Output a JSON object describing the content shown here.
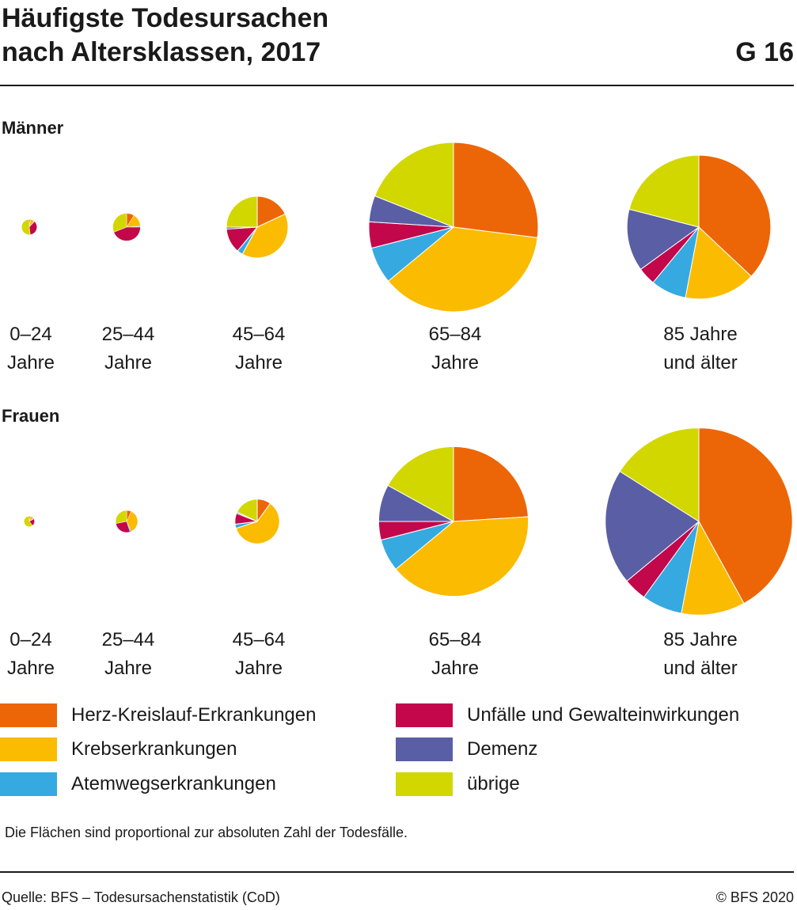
{
  "header": {
    "title_line1": "Häufigste Todesursachen",
    "title_line2": "nach Altersklassen, 2017",
    "graphic_number": "G 16"
  },
  "colors": {
    "herz": "#ec6608",
    "krebs": "#fbbb00",
    "atem": "#36a9e1",
    "unfall": "#c3074b",
    "demenz": "#5a5ea4",
    "uebrige": "#d2d700"
  },
  "legend": [
    {
      "key": "herz",
      "label": "Herz-Kreislauf-Erkrankungen"
    },
    {
      "key": "krebs",
      "label": "Krebserkrankungen"
    },
    {
      "key": "atem",
      "label": "Atemwegserkrankungen"
    },
    {
      "key": "unfall",
      "label": "Unfälle und Gewalteinwirkungen"
    },
    {
      "key": "demenz",
      "label": "Demenz"
    },
    {
      "key": "uebrige",
      "label": "übrige"
    }
  ],
  "note": "Die Flächen sind proportional zur absoluten Zahl der Todesfälle.",
  "footer": {
    "source": "Quelle: BFS – Todesursachenstatistik (CoD)",
    "copyright": "© BFS 2020"
  },
  "chart_data": {
    "type": "pie",
    "categories": [
      "herz",
      "krebs",
      "atem",
      "unfall",
      "demenz",
      "uebrige"
    ],
    "age_groups": [
      {
        "line1": "0–24",
        "line2": "Jahre"
      },
      {
        "line1": "25–44",
        "line2": "Jahre"
      },
      {
        "line1": "45–64",
        "line2": "Jahre"
      },
      {
        "line1": "65–84",
        "line2": "Jahre"
      },
      {
        "line1": "85 Jahre",
        "line2": "und älter"
      }
    ],
    "panels": [
      {
        "name": "Männer",
        "relative_area": [
          0.0083,
          0.0266,
          0.1326,
          1.0,
          0.7211
        ],
        "shares": [
          [
            3,
            8,
            1,
            36,
            0,
            52
          ],
          [
            9,
            15,
            1,
            44,
            0,
            31
          ],
          [
            18,
            40,
            3,
            13,
            1,
            25
          ],
          [
            27,
            37,
            7,
            5,
            5,
            19
          ],
          [
            37,
            16,
            8,
            4,
            14,
            21
          ]
        ]
      },
      {
        "name": "Frauen",
        "relative_area": [
          0.0039,
          0.0171,
          0.0694,
          0.7813,
          1.2207
        ],
        "shares": [
          [
            5,
            10,
            2,
            22,
            0,
            61
          ],
          [
            7,
            36,
            2,
            27,
            0,
            28
          ],
          [
            10,
            60,
            3,
            8,
            1,
            18
          ],
          [
            24,
            40,
            7,
            4,
            8,
            17
          ],
          [
            42,
            11,
            7,
            4,
            20,
            16
          ]
        ]
      }
    ]
  }
}
